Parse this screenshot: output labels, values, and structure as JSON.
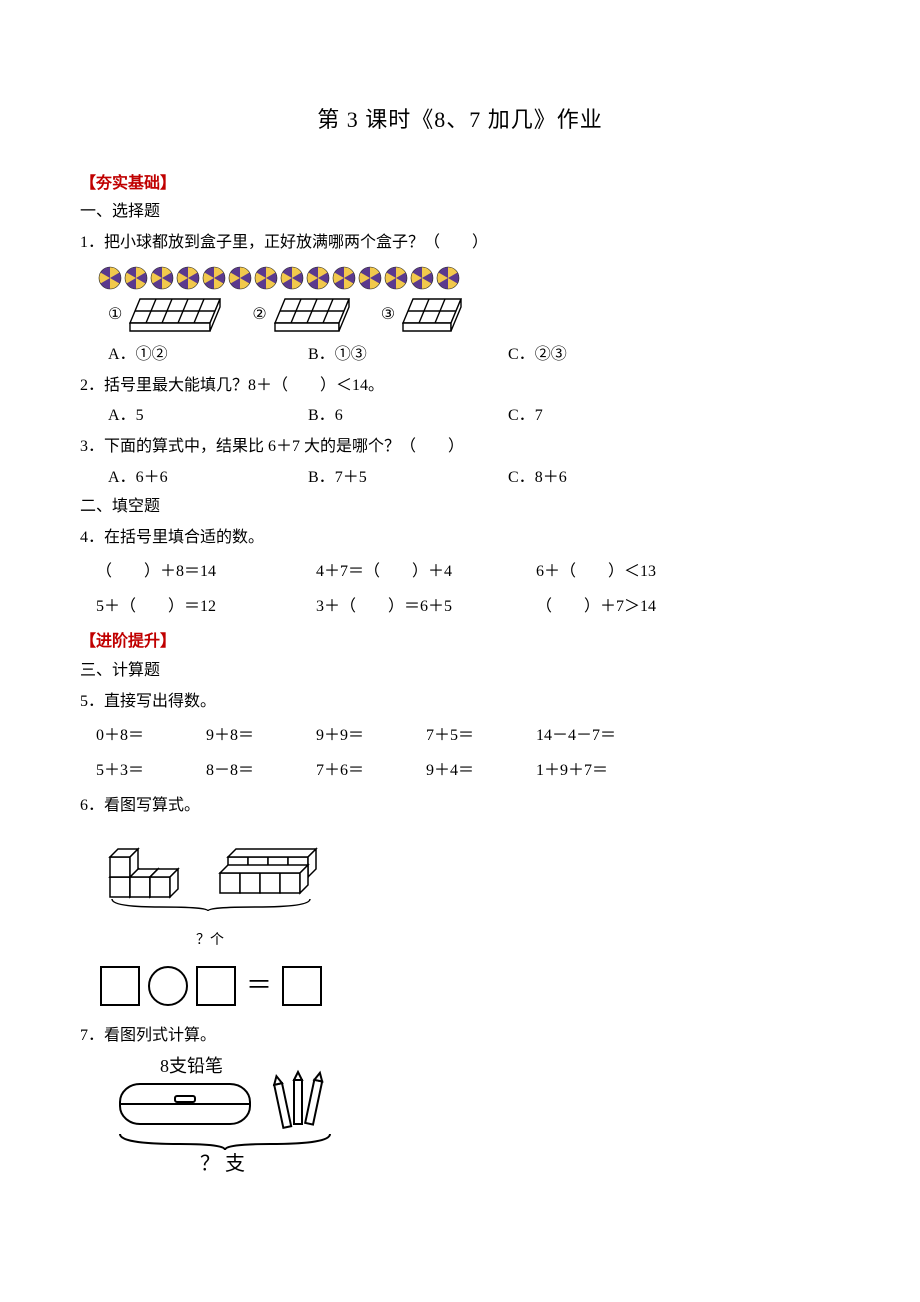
{
  "title": "第 3 课时《8、7 加几》作业",
  "section1": "【夯实基础】",
  "part1": "一、选择题",
  "q1": {
    "text": "1．把小球都放到盒子里，正好放满哪两个盒子？（　　）",
    "ball_count": 14,
    "box_labels": [
      "①",
      "②",
      "③"
    ],
    "box_cells": [
      10,
      8,
      6
    ],
    "choices": {
      "A": "①②",
      "B": "①③",
      "C": "②③"
    }
  },
  "q2": {
    "text": "2．括号里最大能填几？8＋（　　）＜14。",
    "choices": {
      "A": "5",
      "B": "6",
      "C": "7"
    }
  },
  "q3": {
    "text": "3．下面的算式中，结果比 6＋7 大的是哪个？（　　）",
    "choices": {
      "A": "6＋6",
      "B": "7＋5",
      "C": "8＋6"
    }
  },
  "part2": "二、填空题",
  "q4": {
    "text": "4．在括号里填合适的数。",
    "row1": [
      "（　　）＋8＝14",
      "4＋7＝（　　）＋4",
      "6＋（　　）＜13"
    ],
    "row2": [
      "5＋（　　）＝12",
      "3＋（　　）＝6＋5",
      "（　　）＋7＞14"
    ]
  },
  "section2": "【进阶提升】",
  "part3": "三、计算题",
  "q5": {
    "text": "5．直接写出得数。",
    "row1": [
      "0＋8＝",
      "9＋8＝",
      "9＋9＝",
      "7＋5＝",
      "14－4－7＝"
    ],
    "row2": [
      "5＋3＝",
      "8－8＝",
      "7＋6＝",
      "9＋4＝",
      "1＋9＋7＝"
    ]
  },
  "q6": {
    "text": "6．看图写算式。",
    "label": "？个"
  },
  "q7": {
    "text": "7．看图列式计算。",
    "label_top": "8支铅笔",
    "label_bottom": "？ 支"
  },
  "colors": {
    "red": "#c00000",
    "ball_purple": "#5b3a8e",
    "ball_yellow": "#f2c94c"
  }
}
